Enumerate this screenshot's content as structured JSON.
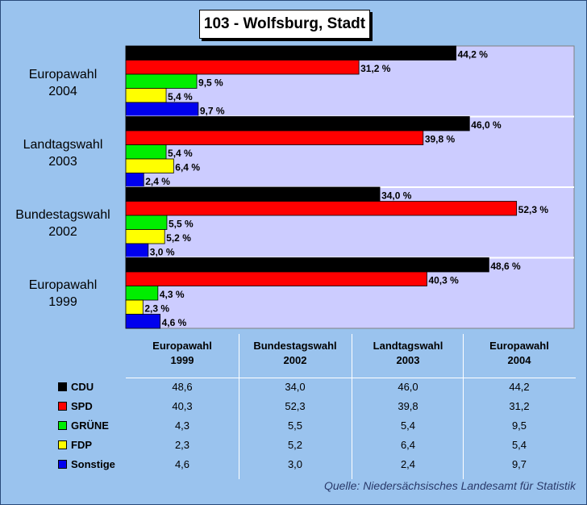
{
  "title": "103 - Wolfsburg, Stadt",
  "source": "Quelle: Niedersächsisches Landesamt für Statistik",
  "chart_data": {
    "type": "bar",
    "orientation": "horizontal",
    "title": "103 - Wolfsburg, Stadt",
    "xlim": [
      0,
      60
    ],
    "grid": false,
    "categories": [
      {
        "line1": "Europawahl",
        "line2": "2004"
      },
      {
        "line1": "Landtagswahl",
        "line2": "2003"
      },
      {
        "line1": "Bundestagswahl",
        "line2": "2002"
      },
      {
        "line1": "Europawahl",
        "line2": "1999"
      }
    ],
    "series": [
      {
        "name": "CDU",
        "color": "#000000",
        "values": [
          44.2,
          46.0,
          34.0,
          48.6
        ],
        "labels": [
          "44,2 %",
          "46,0 %",
          "34,0 %",
          "48,6 %"
        ]
      },
      {
        "name": "SPD",
        "color": "#ff0000",
        "values": [
          31.2,
          39.8,
          52.3,
          40.3
        ],
        "labels": [
          "31,2 %",
          "39,8 %",
          "52,3 %",
          "40,3 %"
        ]
      },
      {
        "name": "GRÜNE",
        "color": "#00ee00",
        "values": [
          9.5,
          5.4,
          5.5,
          4.3
        ],
        "labels": [
          "9,5 %",
          "5,4 %",
          "5,5 %",
          "4,3 %"
        ]
      },
      {
        "name": "FDP",
        "color": "#ffff00",
        "values": [
          5.4,
          6.4,
          5.2,
          2.3
        ],
        "labels": [
          "5,4 %",
          "6,4 %",
          "5,2 %",
          "2,3 %"
        ]
      },
      {
        "name": "Sonstige",
        "color": "#0000ee",
        "values": [
          9.7,
          2.4,
          3.0,
          4.6
        ],
        "labels": [
          "9,7 %",
          "2,4 %",
          "3,0 %",
          "4,6 %"
        ]
      }
    ]
  },
  "table": {
    "columns": [
      {
        "line1": "Europawahl",
        "line2": "1999"
      },
      {
        "line1": "Bundestagswahl",
        "line2": "2002"
      },
      {
        "line1": "Landtagswahl",
        "line2": "2003"
      },
      {
        "line1": "Europawahl",
        "line2": "2004"
      }
    ],
    "rows": [
      {
        "party": "CDU",
        "color": "#000000",
        "cells": [
          "48,6",
          "34,0",
          "46,0",
          "44,2"
        ]
      },
      {
        "party": "SPD",
        "color": "#ff0000",
        "cells": [
          "40,3",
          "52,3",
          "39,8",
          "31,2"
        ]
      },
      {
        "party": "GRÜNE",
        "color": "#00ee00",
        "cells": [
          "4,3",
          "5,5",
          "5,4",
          "9,5"
        ]
      },
      {
        "party": "FDP",
        "color": "#ffff00",
        "cells": [
          "2,3",
          "5,2",
          "6,4",
          "5,4"
        ]
      },
      {
        "party": "Sonstige",
        "color": "#0000ee",
        "cells": [
          "4,6",
          "3,0",
          "2,4",
          "9,7"
        ]
      }
    ]
  }
}
